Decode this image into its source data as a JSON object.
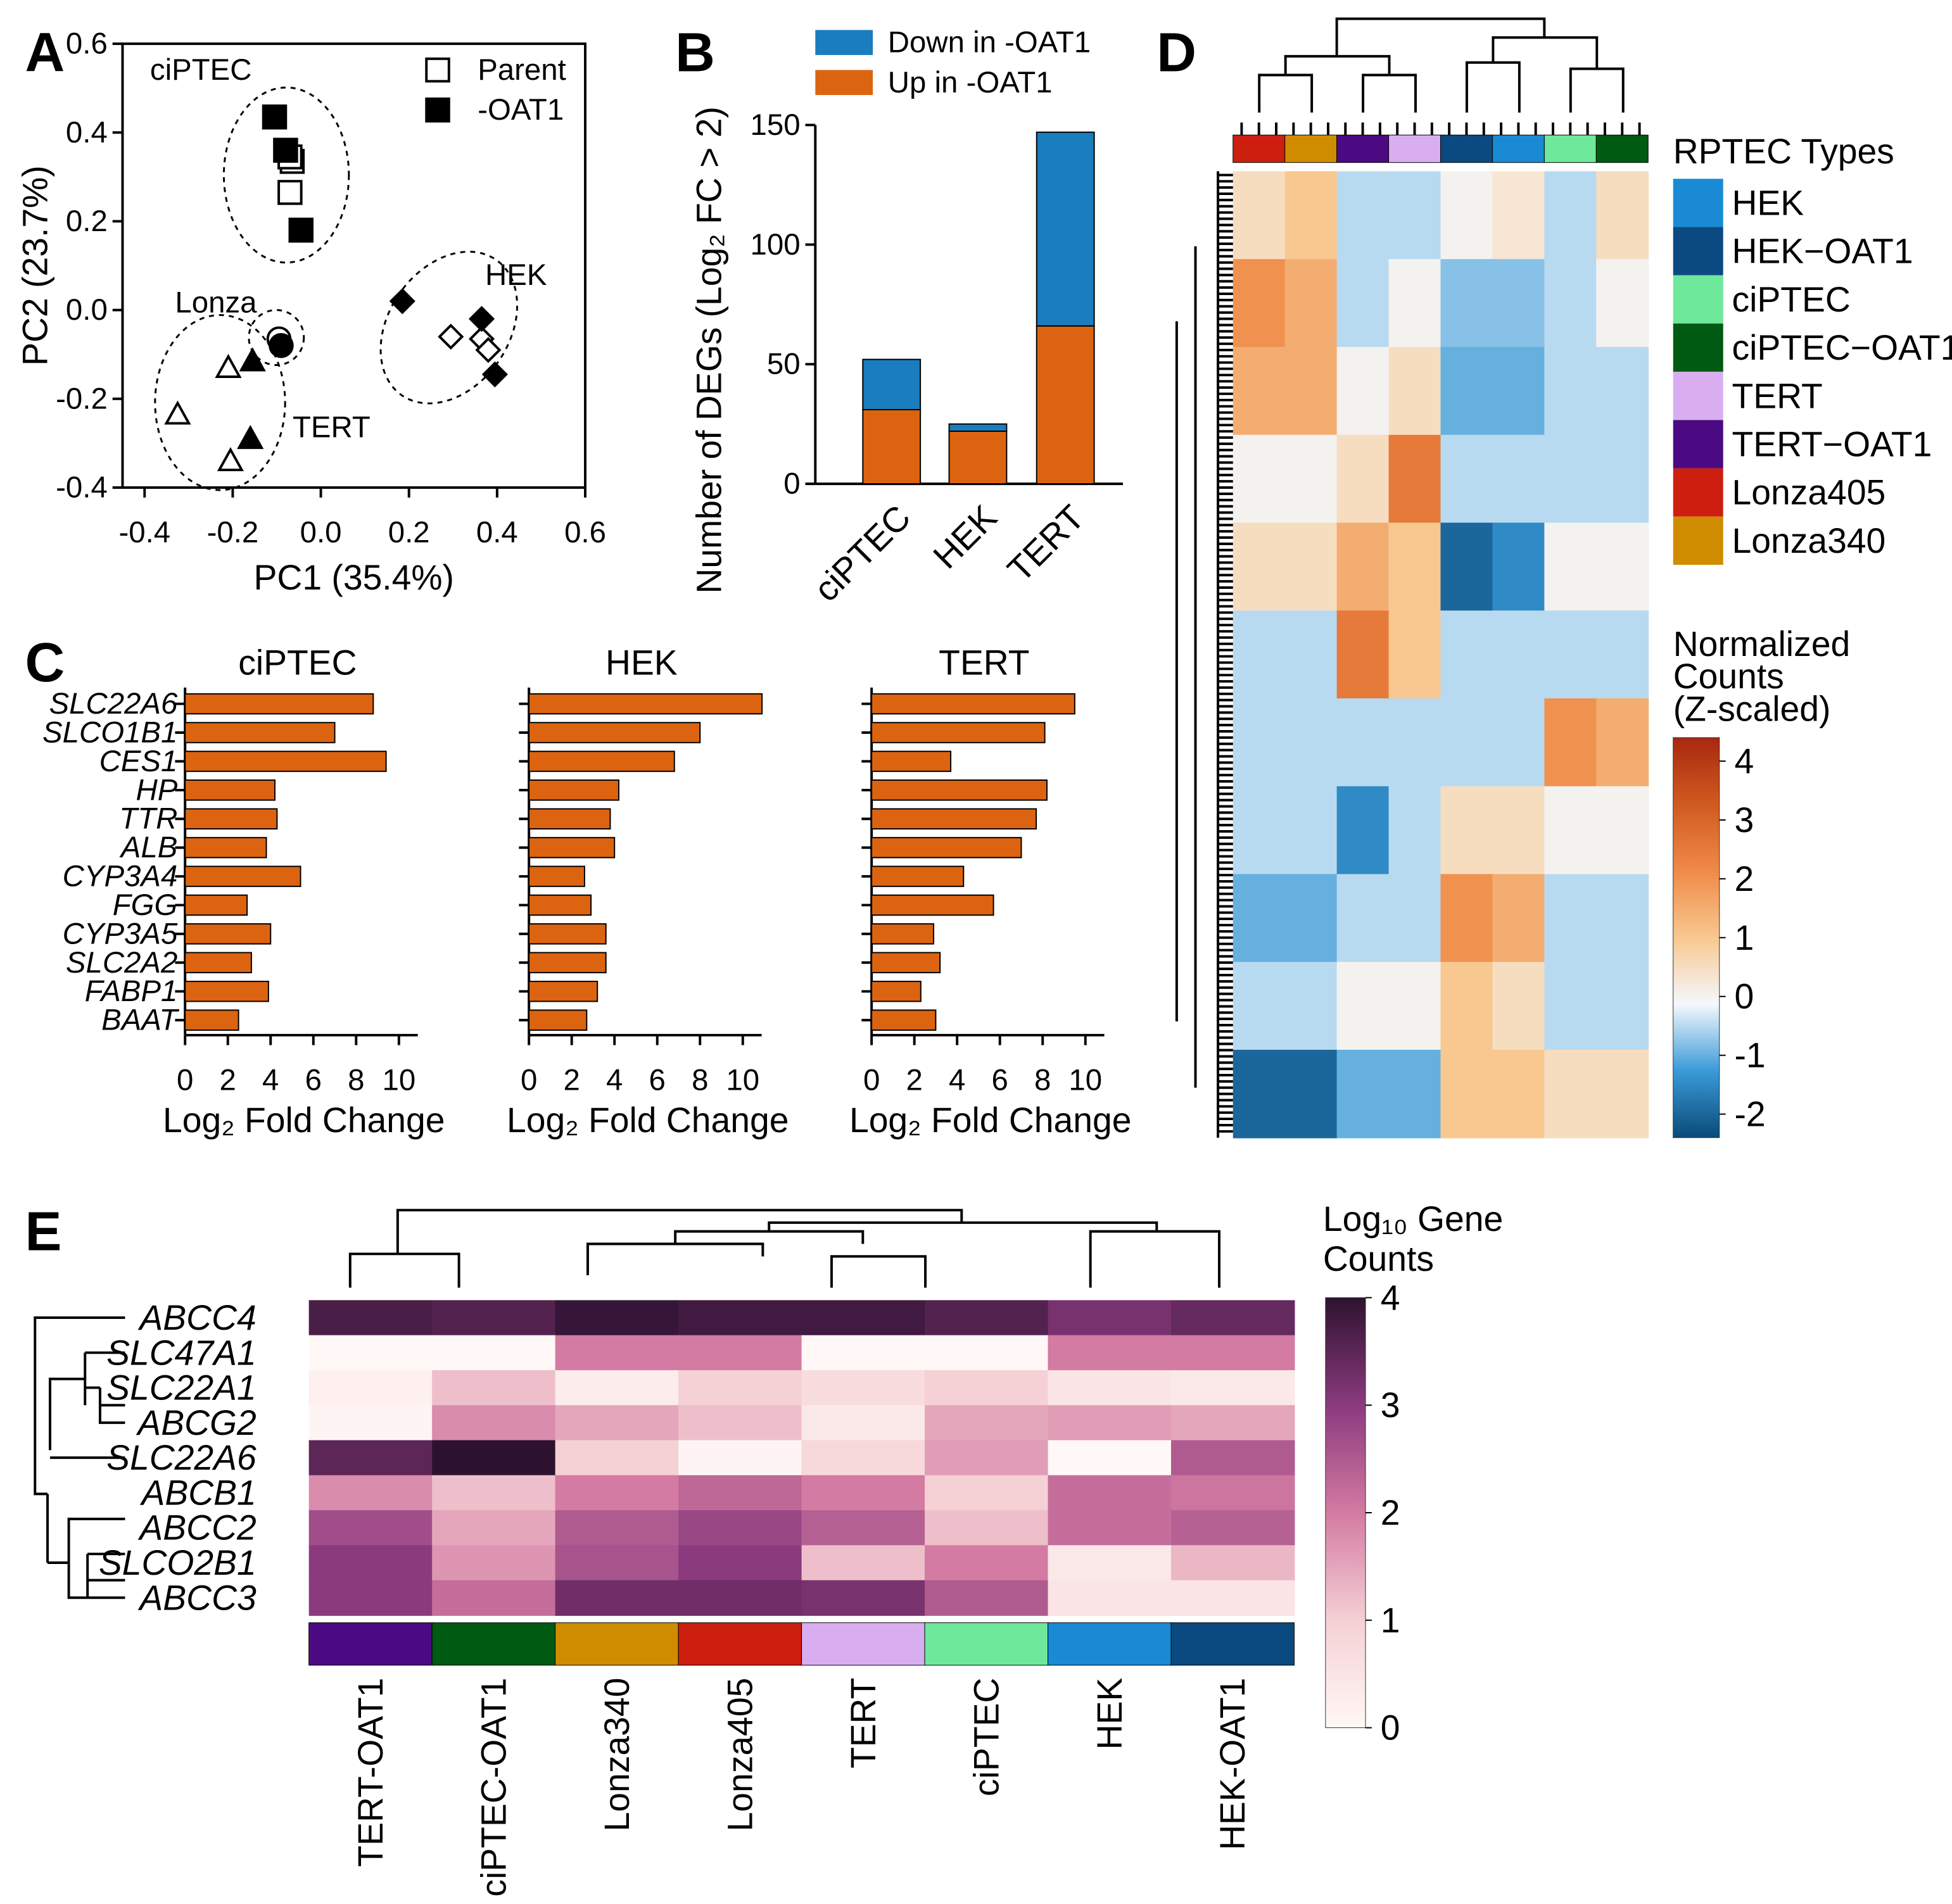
{
  "chart_data": [
    {
      "type": "scatter",
      "panel": "A",
      "xlabel": "PC1 (35.4%)",
      "ylabel": "PC2 (23.7%)",
      "xlim": [
        -0.45,
        0.6
      ],
      "ylim": [
        -0.4,
        0.6
      ],
      "xticks": [
        -0.4,
        -0.2,
        {
          "value": 0,
          "label": "0.0"
        },
        0.2,
        0.4,
        0.6
      ],
      "yticks": [
        -0.4,
        -0.2,
        {
          "value": 0,
          "label": "0.0"
        },
        0.2,
        0.4,
        0.6
      ],
      "annotations": [
        "ciPTEC",
        "Lonza",
        "HEK",
        "TERT"
      ],
      "series": [
        {
          "name": "Parent",
          "filled": false,
          "color": "#000000",
          "markers": [
            "square",
            "square",
            "square",
            "circle",
            "triangle",
            "triangle",
            "triangle",
            "diamond",
            "diamond",
            "diamond"
          ],
          "x": [
            -0.065,
            -0.07,
            -0.07,
            -0.095,
            -0.21,
            -0.325,
            -0.205,
            0.295,
            0.365,
            0.38
          ],
          "y": [
            0.335,
            0.345,
            0.265,
            -0.065,
            -0.13,
            -0.235,
            -0.34,
            -0.06,
            -0.065,
            -0.09
          ]
        },
        {
          "name": "-OAT1",
          "filled": true,
          "color": "#000000",
          "markers": [
            "square",
            "square",
            "square",
            "circle",
            "triangle",
            "triangle",
            "diamond",
            "diamond",
            "diamond"
          ],
          "x": [
            -0.105,
            -0.08,
            -0.045,
            -0.09,
            -0.155,
            -0.16,
            0.185,
            0.365,
            0.395
          ],
          "y": [
            0.435,
            0.36,
            0.18,
            -0.08,
            -0.115,
            -0.29,
            0.02,
            -0.02,
            -0.145
          ]
        }
      ]
    },
    {
      "type": "bar",
      "stacked": true,
      "panel": "B",
      "ylabel": "Number of DEGs (Log₂ FC > 2)",
      "categories": [
        "ciPTEC",
        "HEK",
        "TERT"
      ],
      "ylim": [
        0,
        150
      ],
      "yticks": [
        0,
        50,
        100,
        150
      ],
      "series": [
        {
          "name": "Down in -OAT1",
          "color": "#1a7dbd",
          "values": [
            21,
            3,
            81
          ]
        },
        {
          "name": "Up in -OAT1",
          "color": "#dc6410",
          "values": [
            31,
            22,
            66
          ]
        }
      ]
    },
    {
      "type": "bar",
      "orientation": "horizontal",
      "panel": "C",
      "title": "ciPTEC",
      "xlabel": "Log₂ Fold Change",
      "categories": [
        "SLC22A6",
        "SLCO1B1",
        "CES1",
        "HP",
        "TTR",
        "ALB",
        "CYP3A4",
        "FGG",
        "CYP3A5",
        "SLC2A2",
        "FABP1",
        "BAAT"
      ],
      "values": [
        8.8,
        7.0,
        9.4,
        4.2,
        4.3,
        3.8,
        5.4,
        2.9,
        4.0,
        3.1,
        3.9,
        2.5
      ],
      "color": "#dc6410",
      "xlim": [
        0,
        11
      ],
      "xticks": [
        0,
        2,
        4,
        6,
        8,
        10
      ]
    },
    {
      "type": "bar",
      "orientation": "horizontal",
      "title": "HEK",
      "xlabel": "Log₂ Fold Change",
      "values": [
        10.9,
        8.0,
        6.8,
        4.2,
        3.8,
        4.0,
        2.6,
        2.9,
        3.6,
        3.6,
        3.2,
        2.7
      ],
      "color": "#dc6410",
      "xlim": [
        0,
        11
      ],
      "xticks": [
        0,
        2,
        4,
        6,
        8,
        10
      ]
    },
    {
      "type": "bar",
      "orientation": "horizontal",
      "title": "TERT",
      "xlabel": "Log₂ Fold Change",
      "values": [
        9.5,
        8.1,
        3.7,
        8.2,
        7.7,
        7.0,
        4.3,
        5.7,
        2.9,
        3.2,
        2.3,
        3.0
      ],
      "color": "#dc6410",
      "xlim": [
        0,
        11
      ],
      "xticks": [
        0,
        2,
        4,
        6,
        8,
        10
      ]
    },
    {
      "type": "heatmap",
      "panel": "D",
      "legend_title": "RPTEC Types",
      "groups": [
        {
          "name": "HEK",
          "color": "#1a8ad4"
        },
        {
          "name": "HEK−OAT1",
          "color": "#0b4a80"
        },
        {
          "name": "ciPTEC",
          "color": "#6ee89a"
        },
        {
          "name": "ciPTEC−OAT1",
          "color": "#005a12"
        },
        {
          "name": "TERT",
          "color": "#d9aef0"
        },
        {
          "name": "TERT−OAT1",
          "color": "#4b0a82"
        },
        {
          "name": "Lonza405",
          "color": "#cc1f0f"
        },
        {
          "name": "Lonza340",
          "color": "#d08c00"
        }
      ],
      "columns": [
        "Lonza405",
        "Lonza340",
        "TERT−OAT1",
        "TERT",
        "HEK−OAT1",
        "HEK",
        "ciPTEC",
        "ciPTEC−OAT1"
      ],
      "colorbar_title": [
        "Normalized",
        "Counts",
        "(Z-scaled)"
      ],
      "zlim": [
        -2.4,
        4.4
      ],
      "zticks": [
        -2,
        -1,
        0,
        1,
        2,
        3,
        4
      ],
      "colorscale": [
        "#0a4a7a",
        "#3a9ad8",
        "#f4f8fc",
        "#f8c890",
        "#f08a48",
        "#d05a20",
        "#a82810"
      ],
      "z": [
        [
          0.5,
          1,
          -0.5,
          -0.5,
          0,
          0.3,
          -0.5,
          0.5
        ],
        [
          2,
          1.5,
          -0.5,
          0,
          -0.8,
          -0.8,
          -0.5,
          0
        ],
        [
          1.5,
          1.5,
          0,
          0.5,
          -1,
          -1,
          -0.5,
          -0.5
        ],
        [
          0,
          0,
          0.5,
          2.5,
          -0.5,
          -0.5,
          -0.5,
          -0.5
        ],
        [
          0.5,
          0.5,
          1.5,
          1,
          -2,
          -1.5,
          0,
          0
        ],
        [
          -0.5,
          -0.5,
          2.5,
          1,
          -0.5,
          -0.5,
          -0.5,
          -0.5
        ],
        [
          -0.5,
          -0.5,
          -0.5,
          -0.5,
          -0.5,
          -0.5,
          2,
          1.5
        ],
        [
          -0.5,
          -0.5,
          -1.5,
          -0.5,
          0.5,
          0.5,
          0,
          0
        ],
        [
          -1,
          -1,
          -0.5,
          -0.5,
          2,
          1.5,
          -0.5,
          -0.5
        ],
        [
          -0.5,
          -0.5,
          0,
          0,
          1,
          0.5,
          -0.5,
          -0.5
        ],
        [
          -2,
          -2,
          -1,
          -1,
          1,
          1,
          0.5,
          0.5
        ]
      ]
    },
    {
      "type": "heatmap",
      "panel": "E",
      "rows": [
        "ABCC4",
        "SLC47A1",
        "SLC22A1",
        "ABCG2",
        "SLC22A6",
        "ABCB1",
        "ABCC2",
        "SLCO2B1",
        "ABCC3"
      ],
      "columns": [
        {
          "name": "TERT-OAT1",
          "color": "#4b0a82"
        },
        {
          "name": "ciPTEC-OAT1",
          "color": "#005a12"
        },
        {
          "name": "Lonza340",
          "color": "#d08c00"
        },
        {
          "name": "Lonza405",
          "color": "#cc1f0f"
        },
        {
          "name": "TERT",
          "color": "#d9aef0"
        },
        {
          "name": "ciPTEC",
          "color": "#6ee89a"
        },
        {
          "name": "HEK",
          "color": "#1a8ad4"
        },
        {
          "name": "HEK-OAT1",
          "color": "#0b4a80"
        }
      ],
      "colorbar_title": [
        "Log₁₀ Gene",
        "Counts"
      ],
      "zlim": [
        0,
        4
      ],
      "zticks": [
        0,
        1,
        2,
        3,
        4
      ],
      "colorscale": [
        "#fff8f6",
        "#f5d0d4",
        "#d37ba2",
        "#8b3a7e",
        "#2d1230"
      ],
      "z": [
        [
          3.7,
          3.6,
          3.9,
          3.8,
          3.8,
          3.6,
          3.2,
          3.4
        ],
        [
          0,
          0,
          2,
          2,
          0,
          0,
          2,
          2
        ],
        [
          0.2,
          1.2,
          0.3,
          1,
          0.7,
          1,
          0.5,
          0.4
        ],
        [
          0.1,
          1.8,
          1.5,
          1.2,
          0.4,
          1.5,
          1.6,
          1.5
        ],
        [
          3.5,
          4,
          1,
          0.1,
          0.8,
          1.6,
          0,
          2.5
        ],
        [
          1.8,
          1.2,
          2,
          2.3,
          2,
          1,
          2.2,
          2.1
        ],
        [
          2.7,
          1.5,
          2.5,
          2.8,
          2.4,
          1.2,
          2.2,
          2.4
        ],
        [
          3,
          1.7,
          2.6,
          3,
          1.2,
          2,
          0.4,
          1.3
        ],
        [
          3,
          2.2,
          3.3,
          3.3,
          3.2,
          2.5,
          0.5,
          0.5
        ]
      ]
    }
  ]
}
